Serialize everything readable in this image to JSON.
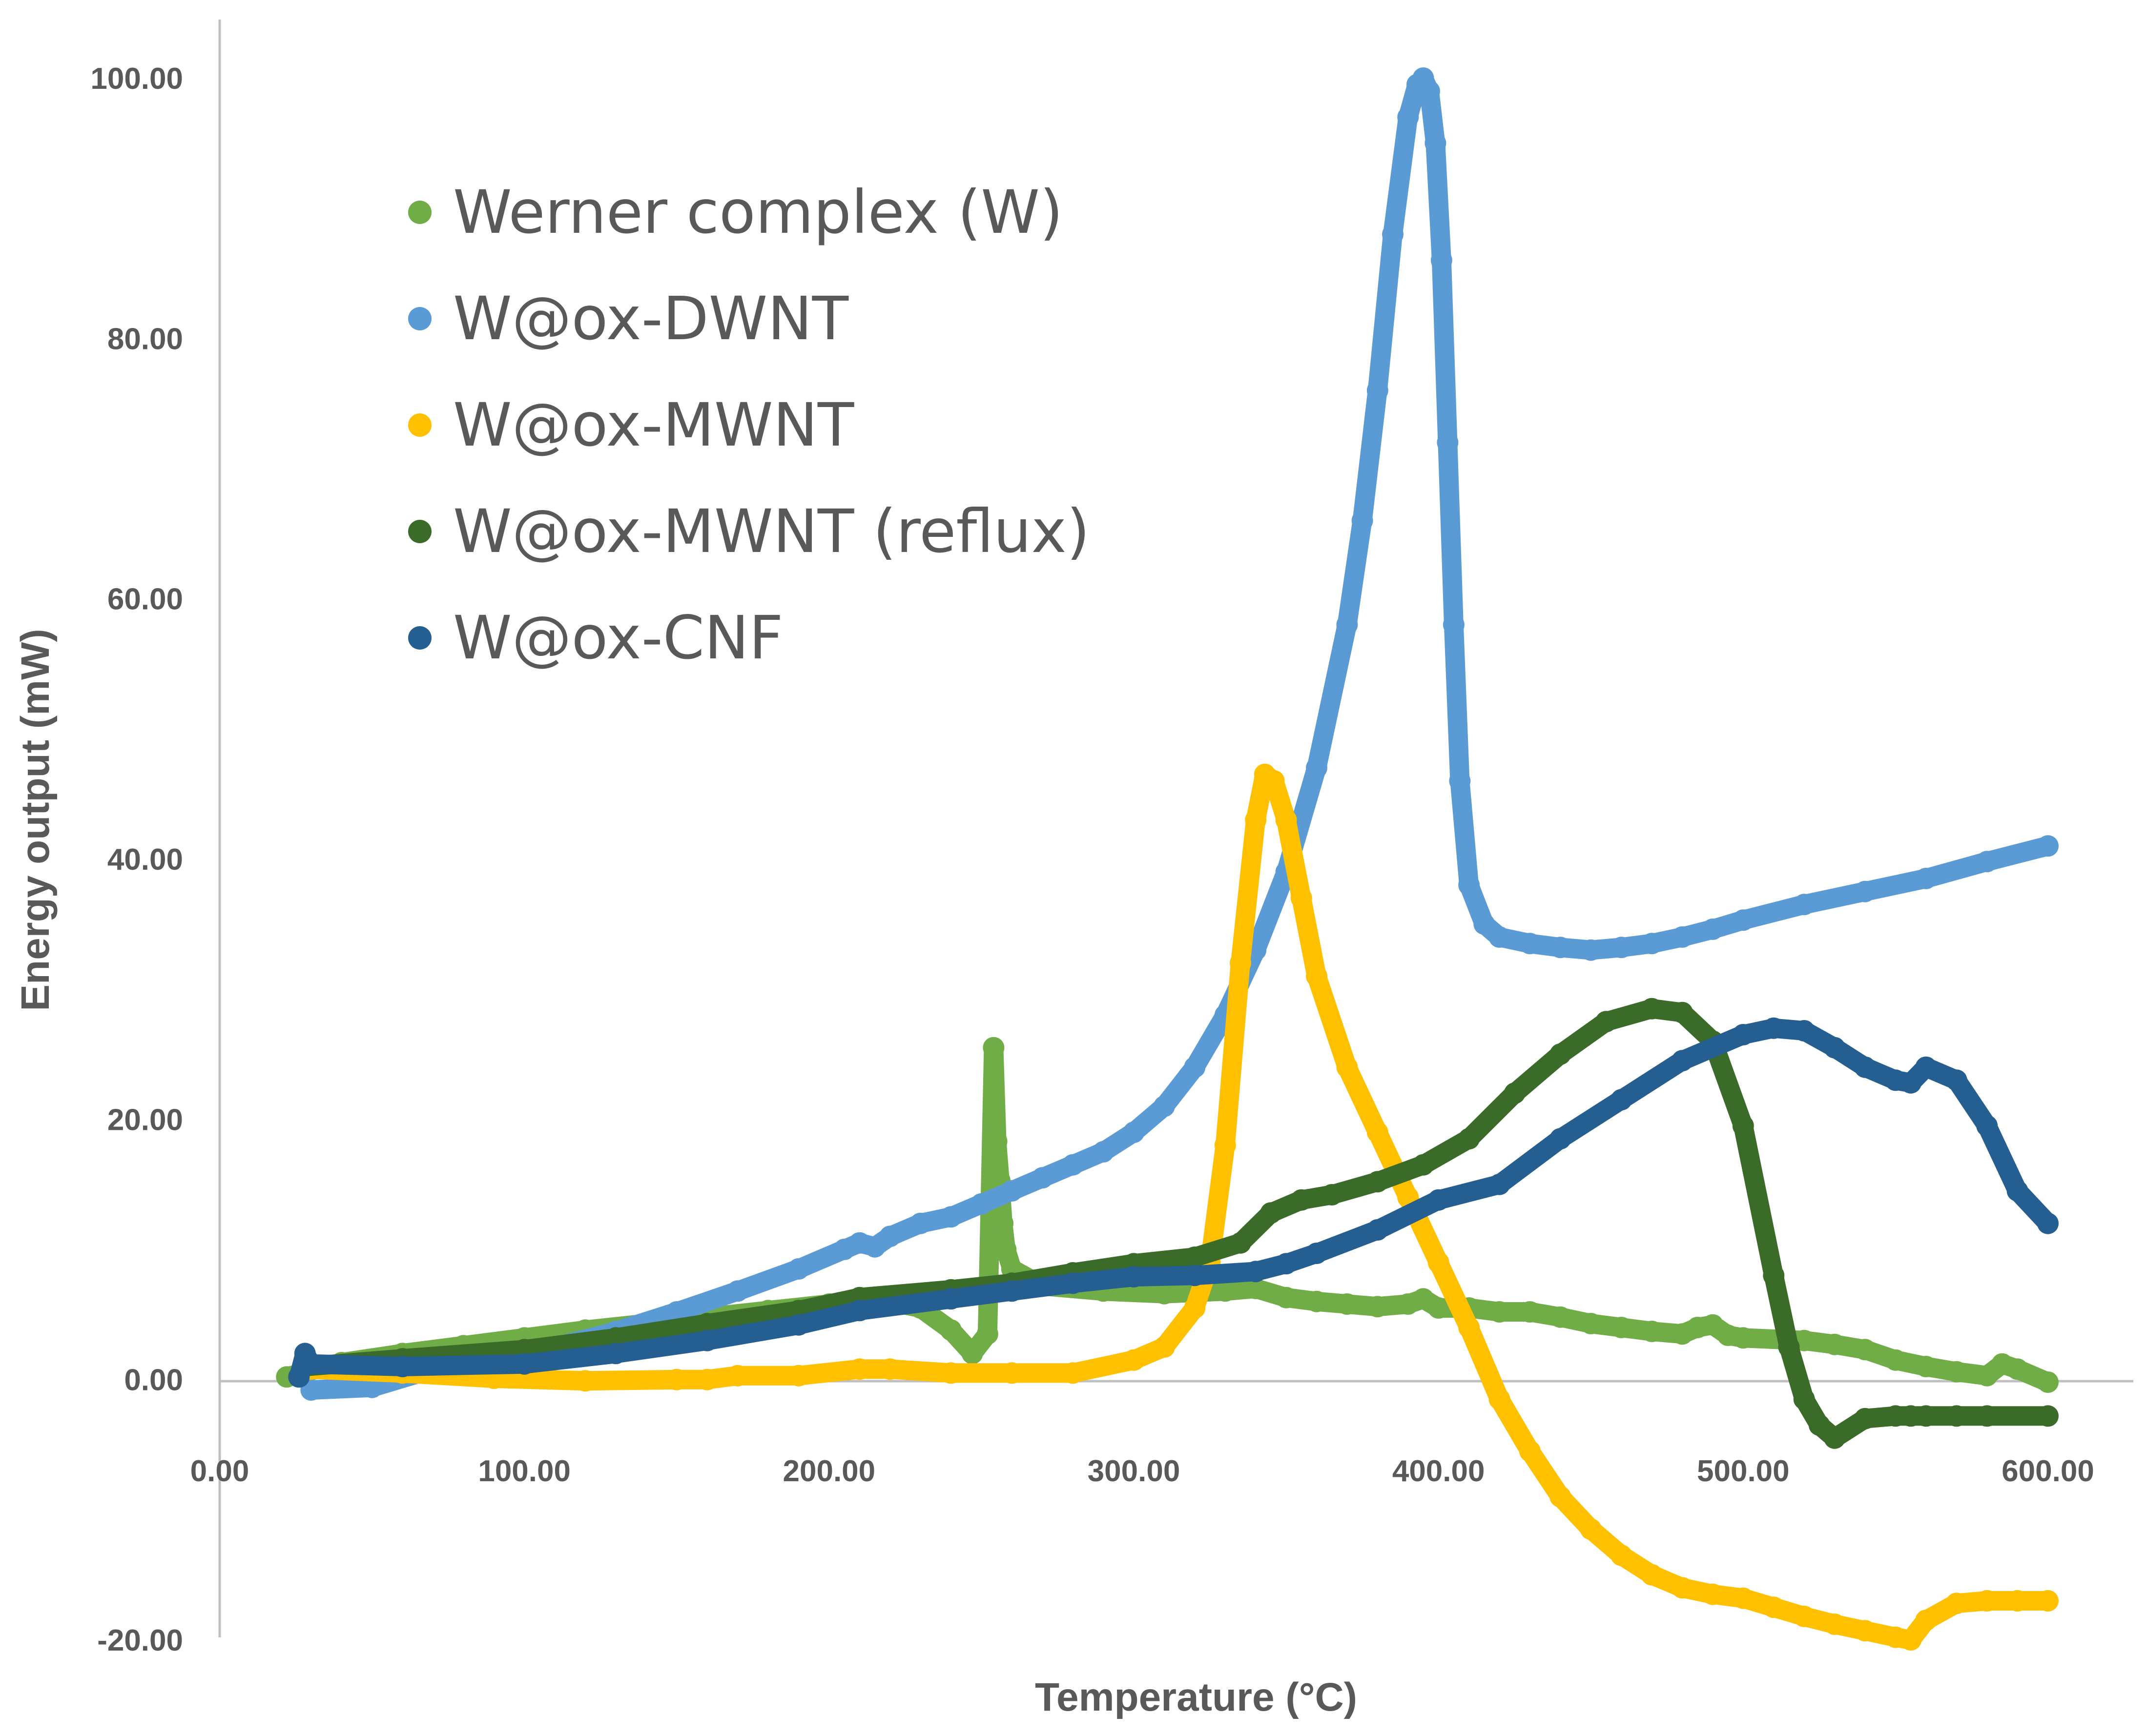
{
  "chart_data": {
    "type": "scatter",
    "title": "",
    "xlabel": "Temperature (°C)",
    "ylabel": "Energy output (mW)",
    "xlim": [
      0,
      600
    ],
    "ylim": [
      -20,
      100
    ],
    "x_ticks": [
      "0.00",
      "100.00",
      "200.00",
      "300.00",
      "400.00",
      "500.00",
      "600.00"
    ],
    "y_ticks": [
      "-20.00",
      "0.00",
      "20.00",
      "40.00",
      "60.00",
      "80.00",
      "100.00"
    ],
    "grid": false,
    "legend_position": "top-left",
    "series": [
      {
        "name": "Werner complex (W)",
        "color": "#70ad47",
        "x": [
          22,
          40,
          60,
          80,
          100,
          120,
          140,
          160,
          180,
          200,
          215,
          230,
          240,
          247,
          252,
          254,
          255,
          256,
          257,
          258,
          260,
          270,
          290,
          310,
          330,
          340,
          350,
          360,
          370,
          380,
          390,
          395,
          400,
          410,
          420,
          430,
          440,
          450,
          460,
          470,
          480,
          485,
          490,
          495,
          500,
          520,
          530,
          540,
          550,
          560,
          570,
          580,
          585,
          590,
          600
        ],
        "y": [
          0.2,
          1.3,
          2.0,
          2.6,
          3.2,
          3.8,
          4.3,
          4.8,
          5.3,
          5.8,
          6.2,
          5.5,
          3.8,
          2.0,
          3.5,
          25.5,
          18.3,
          15.3,
          12.0,
          10.0,
          8.5,
          7.2,
          6.8,
          6.6,
          6.8,
          7.0,
          6.3,
          6.0,
          5.8,
          5.6,
          5.8,
          6.2,
          5.5,
          5.5,
          5.2,
          5.2,
          4.8,
          4.3,
          4.0,
          3.7,
          3.5,
          4.0,
          4.2,
          3.4,
          3.2,
          3.0,
          2.7,
          2.3,
          1.5,
          1.0,
          0.6,
          0.3,
          1.2,
          0.8,
          -0.2
        ]
      },
      {
        "name": "W@ox-DWNT",
        "color": "#5b9bd5",
        "x": [
          30,
          50,
          70,
          90,
          110,
          130,
          150,
          170,
          190,
          205,
          210,
          215,
          220,
          230,
          240,
          250,
          260,
          270,
          280,
          290,
          300,
          310,
          320,
          330,
          340,
          350,
          360,
          370,
          375,
          380,
          385,
          390,
          393,
          395,
          397,
          399,
          401,
          403,
          405,
          407,
          410,
          415,
          420,
          430,
          440,
          450,
          460,
          470,
          480,
          490,
          500,
          520,
          540,
          560,
          580,
          600
        ],
        "y": [
          -0.8,
          -0.6,
          0.8,
          1.5,
          2.5,
          3.7,
          5.2,
          6.8,
          8.5,
          10.0,
          10.5,
          10.2,
          11.0,
          12.0,
          12.5,
          13.5,
          14.5,
          15.5,
          16.5,
          17.5,
          19.0,
          21.0,
          24.0,
          28.0,
          33.0,
          39.0,
          47.0,
          58.0,
          66.0,
          76.0,
          88.0,
          97.0,
          99.5,
          100.0,
          99.0,
          95.0,
          86.0,
          72.0,
          58.0,
          46.0,
          38.0,
          35.0,
          34.0,
          33.5,
          33.2,
          33.0,
          33.2,
          33.5,
          34.0,
          34.6,
          35.3,
          36.5,
          37.5,
          38.5,
          39.8,
          41.0
        ]
      },
      {
        "name": "W@ox-MWNT",
        "color": "#ffc000",
        "x": [
          30,
          60,
          90,
          120,
          150,
          160,
          170,
          190,
          210,
          220,
          240,
          260,
          280,
          300,
          310,
          320,
          325,
          330,
          335,
          340,
          343,
          346,
          350,
          355,
          360,
          370,
          380,
          390,
          400,
          410,
          420,
          430,
          440,
          450,
          460,
          470,
          480,
          490,
          500,
          510,
          520,
          530,
          540,
          550,
          555,
          560,
          570,
          580,
          590,
          600
        ],
        "y": [
          0.8,
          0.5,
          0.1,
          -0.1,
          0.0,
          0.0,
          0.3,
          0.3,
          0.8,
          0.8,
          0.5,
          0.5,
          0.5,
          1.5,
          2.5,
          5.5,
          9.0,
          18.0,
          32.0,
          43.0,
          46.5,
          46.0,
          43.0,
          37.0,
          31.0,
          24.0,
          19.0,
          14.0,
          9.0,
          4.0,
          -1.5,
          -5.5,
          -9.0,
          -11.5,
          -13.5,
          -15.0,
          -16.0,
          -16.5,
          -16.8,
          -17.5,
          -18.2,
          -18.8,
          -19.3,
          -19.8,
          -20.0,
          -18.5,
          -17.2,
          -17.0,
          -17.0,
          -17.0
        ],
        "mark_count": 50
      },
      {
        "name": "W@ox-MWNT (reflux)",
        "color": "#3a6b29",
        "x": [
          28,
          60,
          100,
          130,
          160,
          190,
          210,
          240,
          260,
          280,
          300,
          320,
          335,
          345,
          355,
          365,
          380,
          395,
          410,
          425,
          440,
          455,
          470,
          480,
          490,
          500,
          510,
          515,
          520,
          525,
          530,
          540,
          550,
          555,
          560,
          570,
          580,
          600
        ],
        "y": [
          1.0,
          1.6,
          2.3,
          3.2,
          4.3,
          5.3,
          6.3,
          6.9,
          7.4,
          8.2,
          8.9,
          9.4,
          10.5,
          12.8,
          13.8,
          14.2,
          15.2,
          16.5,
          18.5,
          22.0,
          25.0,
          27.5,
          28.5,
          28.2,
          26.0,
          19.5,
          8.0,
          2.5,
          -1.5,
          -3.5,
          -4.5,
          -3.0,
          -2.8,
          -2.8,
          -2.8,
          -2.8,
          -2.8,
          -2.8
        ]
      },
      {
        "name": "W@ox-CNF",
        "color": "#255e91",
        "x": [
          26,
          28,
          30,
          60,
          100,
          130,
          160,
          190,
          210,
          240,
          260,
          280,
          300,
          320,
          340,
          350,
          360,
          380,
          400,
          420,
          440,
          460,
          480,
          500,
          510,
          520,
          530,
          540,
          550,
          555,
          560,
          570,
          580,
          590,
          600
        ],
        "y": [
          0.2,
          2.0,
          1.2,
          1.0,
          1.2,
          2.0,
          3.0,
          4.2,
          5.3,
          6.2,
          6.8,
          7.4,
          7.9,
          8.0,
          8.3,
          8.9,
          9.7,
          11.5,
          13.8,
          15.0,
          18.5,
          21.5,
          24.5,
          26.5,
          27.0,
          26.8,
          25.5,
          24.0,
          23.0,
          22.8,
          24.0,
          23.0,
          19.5,
          14.5,
          12.0
        ]
      }
    ]
  }
}
